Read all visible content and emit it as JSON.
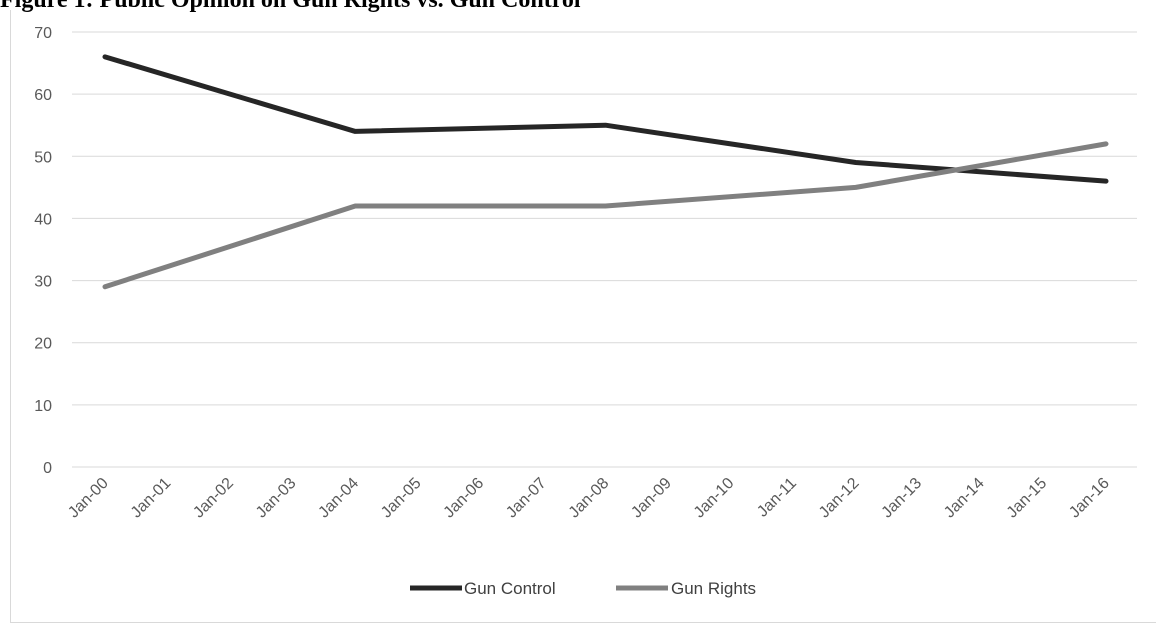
{
  "header": {
    "title": "Figure 1: Public Opinion on Gun Rights vs. Gun Control"
  },
  "chart_data": {
    "type": "line",
    "title": "",
    "xlabel": "",
    "ylabel": "",
    "categories": [
      "Jan-00",
      "Jan-01",
      "Jan-02",
      "Jan-03",
      "Jan-04",
      "Jan-05",
      "Jan-06",
      "Jan-07",
      "Jan-08",
      "Jan-09",
      "Jan-10",
      "Jan-11",
      "Jan-12",
      "Jan-13",
      "Jan-14",
      "Jan-15",
      "Jan-16"
    ],
    "ylim": [
      0,
      70
    ],
    "yticks": [
      0,
      10,
      20,
      30,
      40,
      50,
      60,
      70
    ],
    "grid": true,
    "legend_position": "bottom",
    "series": [
      {
        "name": "Gun Control",
        "color": "#262626",
        "points": [
          {
            "x": "Jan-00",
            "y": 66
          },
          {
            "x": "Jan-04",
            "y": 54
          },
          {
            "x": "Jan-08",
            "y": 55
          },
          {
            "x": "Jan-12",
            "y": 49
          },
          {
            "x": "Jan-16",
            "y": 46
          }
        ]
      },
      {
        "name": "Gun Rights",
        "color": "#808080",
        "points": [
          {
            "x": "Jan-00",
            "y": 29
          },
          {
            "x": "Jan-04",
            "y": 42
          },
          {
            "x": "Jan-08",
            "y": 42
          },
          {
            "x": "Jan-12",
            "y": 45
          },
          {
            "x": "Jan-16",
            "y": 52
          }
        ]
      }
    ]
  }
}
